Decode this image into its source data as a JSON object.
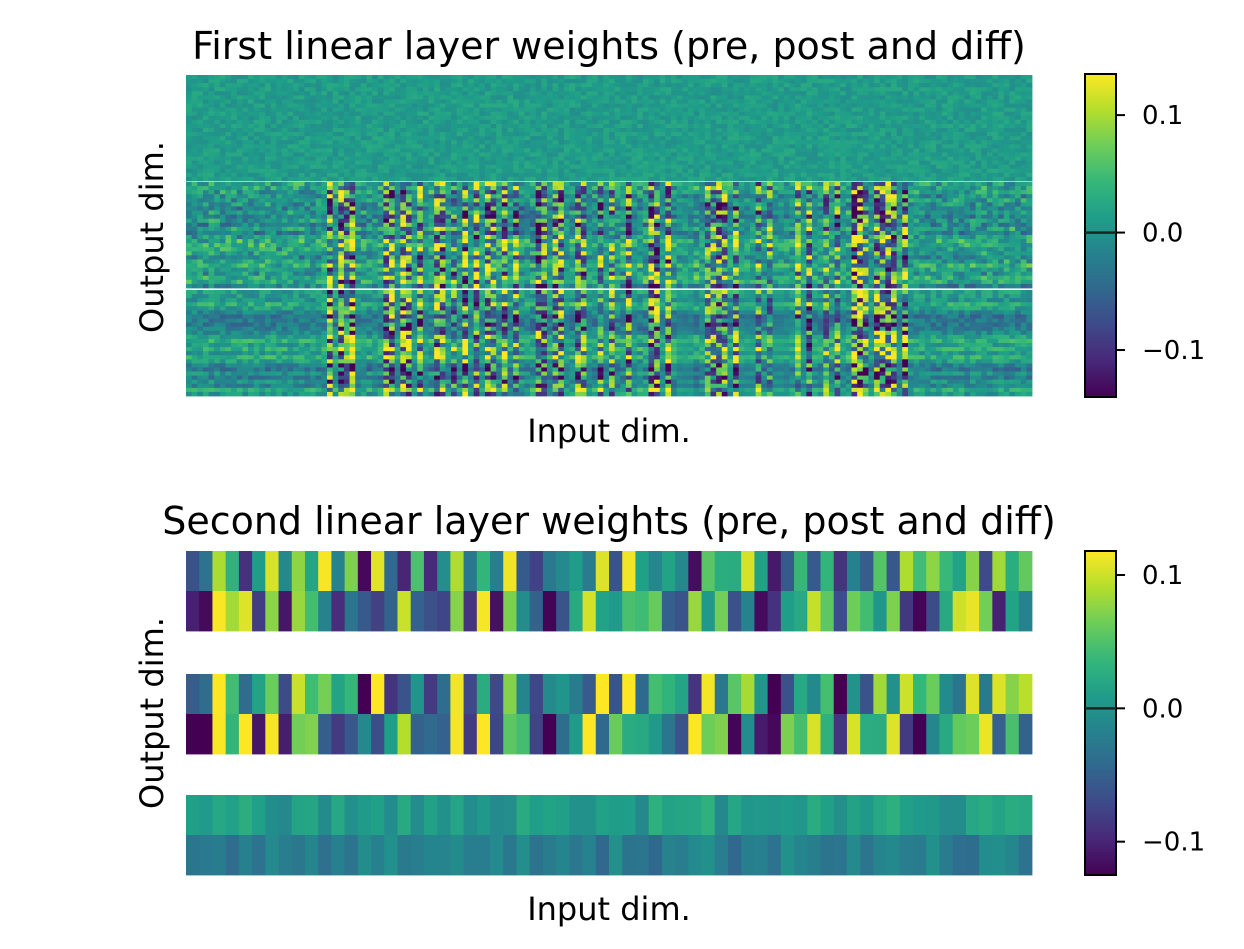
{
  "chart_data": [
    {
      "type": "heatmap",
      "title": "First linear layer weights (pre, post and diff)",
      "xlabel": "Input dim.",
      "ylabel": "Output dim.",
      "panels": [
        "pre",
        "post",
        "diff"
      ],
      "colormap": "viridis",
      "colorbar": {
        "range": [
          -0.14,
          0.135
        ],
        "ticks": [
          -0.1,
          0.0,
          0.1
        ],
        "tick_labels": [
          "−0.1",
          "0.0",
          "0.1"
        ],
        "marker": 0.0
      },
      "grid": false,
      "x_ticks_shown": false,
      "y_ticks_shown": false
    },
    {
      "type": "heatmap",
      "title": "Second linear layer weights (pre, post and diff)",
      "xlabel": "Input dim.",
      "ylabel": "Output dim.",
      "panels": [
        "pre",
        "post",
        "diff"
      ],
      "colormap": "viridis",
      "rows_per_panel": 2,
      "columns": 64,
      "colorbar": {
        "range": [
          -0.125,
          0.118
        ],
        "ticks": [
          -0.1,
          0.0,
          0.1
        ],
        "tick_labels": [
          "−0.1",
          "0.0",
          "0.1"
        ],
        "marker": 0.0
      },
      "grid": false,
      "x_ticks_shown": false,
      "y_ticks_shown": false
    }
  ]
}
